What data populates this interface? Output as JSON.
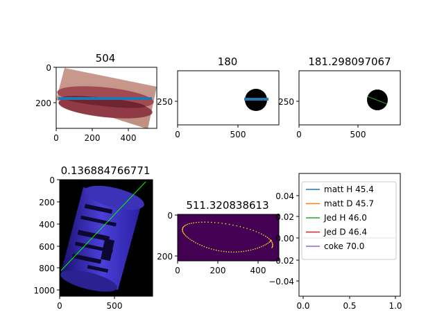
{
  "chart_data": [
    {
      "type": "image",
      "title": "504",
      "xticks": [
        "0",
        "200",
        "400"
      ],
      "yticks": [
        "0",
        "200"
      ],
      "xlim": [
        0,
        560
      ],
      "ylim": [
        0,
        350
      ],
      "description_color": "#1f77b4",
      "line": {
        "x": [
          20,
          540
        ],
        "y": [
          175,
          175
        ]
      }
    },
    {
      "type": "image",
      "title": "180",
      "xticks": [
        "0",
        "500"
      ],
      "yticks": [
        "250"
      ],
      "line": {
        "x": [
          570,
          770
        ],
        "y": [
          245,
          245
        ]
      }
    },
    {
      "type": "image",
      "title": "181.298097067",
      "xticks": [
        "0",
        "500"
      ],
      "yticks": [
        "250"
      ],
      "line": {
        "x": [
          590,
          780
        ],
        "y": [
          230,
          265
        ]
      }
    },
    {
      "type": "image",
      "title": "0.136884766771",
      "xticks": [
        "0",
        "500"
      ],
      "yticks": [
        "0",
        "200",
        "400",
        "600",
        "800",
        "1000"
      ]
    },
    {
      "type": "image",
      "title": "511.320838613",
      "xticks": [
        "0",
        "200",
        "400"
      ],
      "yticks": [
        "0",
        "200"
      ]
    },
    {
      "type": "line",
      "xticks": [
        "0.0",
        "0.5",
        "1.0"
      ],
      "yticks": [
        "0.04",
        "0.02",
        "0.00",
        "−0.02",
        "−0.04"
      ],
      "xlim": [
        -0.055,
        1.055
      ],
      "ylim": [
        -0.055,
        0.055
      ],
      "legend_position": "top-left",
      "series": [
        {
          "name": "matt H 45.4",
          "color": "#1f77b4"
        },
        {
          "name": "matt D 45.7",
          "color": "#ff7f0e"
        },
        {
          "name": "Jed H 46.0",
          "color": "#2ca02c"
        },
        {
          "name": "Jed D 46.4",
          "color": "#d62728"
        },
        {
          "name": "coke 70.0",
          "color": "#9467bd"
        }
      ]
    }
  ]
}
